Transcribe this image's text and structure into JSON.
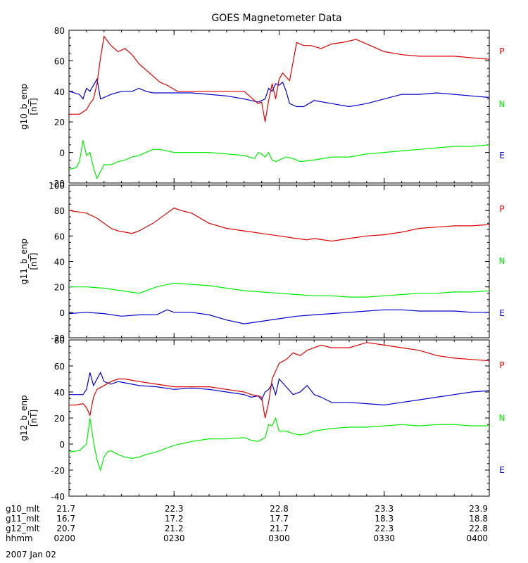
{
  "title": "GOES Magnetometer Data",
  "colors": {
    "P": "#dd0000",
    "N": "#00ee00",
    "E": "#0000cc",
    "axis": "#000000"
  },
  "chart_data": [
    {
      "type": "line",
      "ylabel": "g10_b_enp",
      "yunits": "[nT]",
      "ylim": [
        -20,
        80
      ],
      "yticks": [
        -20,
        0,
        20,
        40,
        60,
        80
      ],
      "legend": [
        "P",
        "N",
        "E"
      ],
      "legend_order_top_to_bottom": [
        "P",
        "N",
        "E"
      ],
      "series": [
        {
          "name": "P",
          "x": [
            0,
            3,
            5,
            6,
            7,
            8,
            9,
            10,
            12,
            14,
            16,
            18,
            20,
            22,
            24,
            26,
            28,
            31,
            35,
            40,
            45,
            50,
            53,
            54,
            55,
            56,
            57,
            58,
            59,
            60,
            61,
            63,
            65,
            67,
            69,
            72,
            75,
            78,
            82,
            86,
            90,
            95,
            100,
            105,
            110,
            115,
            120
          ],
          "y": [
            25,
            25,
            28,
            32,
            35,
            45,
            62,
            76,
            70,
            66,
            68,
            64,
            58,
            54,
            50,
            46,
            44,
            40,
            40,
            40,
            40,
            40,
            34,
            32,
            33,
            20,
            34,
            45,
            35,
            48,
            52,
            47,
            72,
            70,
            70,
            68,
            71,
            72,
            74,
            70,
            66,
            64,
            63,
            63,
            63,
            62,
            61
          ]
        },
        {
          "name": "N",
          "x": [
            0,
            2,
            3,
            4,
            5,
            6,
            7,
            8,
            10,
            12,
            14,
            16,
            18,
            20,
            22,
            24,
            26,
            28,
            30,
            35,
            40,
            45,
            50,
            53,
            54,
            55,
            56,
            57,
            58,
            59,
            60,
            62,
            64,
            66,
            70,
            75,
            80,
            85,
            90,
            95,
            100,
            105,
            110,
            115,
            120
          ],
          "y": [
            -11,
            -10,
            -6,
            8,
            -2,
            0,
            -10,
            -17,
            -8,
            -8,
            -6,
            -5,
            -3,
            -2,
            0,
            2,
            2,
            1,
            0,
            0,
            0,
            -1,
            -2,
            -4,
            0,
            -1,
            -3,
            0,
            -5,
            -6,
            -5,
            -3,
            -4,
            -6,
            -5,
            -3,
            -3,
            -1,
            0,
            1,
            2,
            3,
            4,
            4,
            5
          ]
        },
        {
          "name": "E",
          "x": [
            0,
            3,
            4,
            5,
            6,
            7,
            8,
            9,
            10,
            12,
            15,
            18,
            20,
            22,
            24,
            26,
            28,
            30,
            35,
            40,
            45,
            50,
            52,
            54,
            55,
            56,
            57,
            58,
            59,
            60,
            61,
            62,
            63,
            65,
            67,
            70,
            75,
            80,
            85,
            90,
            95,
            100,
            105,
            110,
            115,
            120
          ],
          "y": [
            40,
            38,
            35,
            42,
            40,
            44,
            48,
            35,
            36,
            38,
            40,
            40,
            42,
            40,
            39,
            39,
            39,
            39,
            39,
            38,
            37,
            35,
            34,
            33,
            34,
            35,
            42,
            40,
            45,
            44,
            46,
            40,
            32,
            30,
            30,
            34,
            32,
            30,
            32,
            35,
            38,
            38,
            39,
            38,
            37,
            36
          ]
        }
      ]
    },
    {
      "type": "line",
      "ylabel": "g11_b_enp",
      "yunits": "[nT]",
      "ylim": [
        -20,
        100
      ],
      "yticks": [
        -20,
        0,
        20,
        40,
        60,
        80,
        100
      ],
      "legend": [
        "P",
        "N",
        "E"
      ],
      "legend_order_top_to_bottom": [
        "P",
        "N",
        "E"
      ],
      "series": [
        {
          "name": "P",
          "x": [
            0,
            5,
            8,
            10,
            12,
            14,
            16,
            18,
            20,
            24,
            28,
            30,
            32,
            35,
            40,
            45,
            50,
            55,
            60,
            65,
            68,
            70,
            75,
            80,
            85,
            90,
            95,
            100,
            105,
            110,
            115,
            120
          ],
          "y": [
            80,
            78,
            74,
            70,
            66,
            64,
            63,
            62,
            64,
            70,
            78,
            82,
            80,
            78,
            70,
            66,
            64,
            62,
            60,
            58,
            57,
            58,
            56,
            58,
            60,
            61,
            63,
            66,
            67,
            68,
            68,
            69
          ]
        },
        {
          "name": "N",
          "x": [
            0,
            5,
            10,
            15,
            20,
            25,
            30,
            35,
            40,
            45,
            50,
            55,
            60,
            65,
            70,
            75,
            80,
            85,
            90,
            95,
            100,
            105,
            110,
            115,
            120
          ],
          "y": [
            20,
            20,
            19,
            17,
            15,
            20,
            23,
            22,
            21,
            19,
            17,
            16,
            15,
            14,
            13,
            13,
            12,
            12,
            13,
            14,
            15,
            15,
            16,
            16,
            17
          ]
        },
        {
          "name": "E",
          "x": [
            0,
            5,
            10,
            15,
            20,
            25,
            28,
            30,
            35,
            40,
            45,
            50,
            55,
            60,
            65,
            70,
            75,
            80,
            85,
            90,
            95,
            100,
            105,
            110,
            115,
            120
          ],
          "y": [
            -1,
            0,
            -1,
            -3,
            -2,
            -2,
            2,
            0,
            0,
            -2,
            -6,
            -9,
            -7,
            -5,
            -3,
            -2,
            -1,
            0,
            1,
            2,
            2,
            1,
            1,
            1,
            0,
            0
          ]
        }
      ]
    },
    {
      "type": "line",
      "ylabel": "g12_b_enp",
      "yunits": "[nT]",
      "ylim": [
        -40,
        80
      ],
      "yticks": [
        -40,
        -20,
        0,
        20,
        40,
        60,
        80
      ],
      "legend": [
        "P",
        "N",
        "E"
      ],
      "legend_order_top_to_bottom": [
        "P",
        "N",
        "E"
      ],
      "series": [
        {
          "name": "P",
          "x": [
            0,
            2,
            4,
            5,
            6,
            7,
            8,
            10,
            12,
            14,
            16,
            18,
            20,
            25,
            30,
            35,
            40,
            45,
            50,
            52,
            54,
            55,
            56,
            57,
            58,
            60,
            62,
            64,
            66,
            68,
            70,
            72,
            75,
            80,
            85,
            90,
            95,
            100,
            105,
            110,
            115,
            120
          ],
          "y": [
            30,
            30,
            31,
            28,
            22,
            36,
            42,
            45,
            48,
            50,
            50,
            49,
            48,
            46,
            44,
            44,
            44,
            42,
            40,
            38,
            37,
            36,
            20,
            32,
            50,
            62,
            65,
            70,
            68,
            72,
            74,
            76,
            74,
            74,
            78,
            76,
            74,
            72,
            68,
            66,
            65,
            64
          ]
        },
        {
          "name": "N",
          "x": [
            0,
            3,
            5,
            6,
            7,
            8,
            9,
            10,
            11,
            12,
            14,
            16,
            18,
            20,
            22,
            25,
            28,
            30,
            35,
            40,
            45,
            50,
            52,
            54,
            56,
            57,
            58,
            59,
            60,
            62,
            64,
            66,
            68,
            70,
            75,
            80,
            85,
            90,
            95,
            100,
            105,
            110,
            115,
            120
          ],
          "y": [
            -6,
            -5,
            0,
            20,
            2,
            -12,
            -20,
            -10,
            -6,
            -5,
            -8,
            -10,
            -11,
            -10,
            -8,
            -6,
            -3,
            -1,
            2,
            4,
            4,
            5,
            3,
            2,
            5,
            15,
            14,
            20,
            10,
            10,
            8,
            7,
            8,
            10,
            12,
            13,
            13,
            14,
            15,
            14,
            15,
            15,
            14,
            14
          ]
        },
        {
          "name": "E",
          "x": [
            0,
            4,
            5,
            6,
            7,
            8,
            9,
            10,
            12,
            14,
            16,
            18,
            20,
            25,
            30,
            35,
            40,
            45,
            50,
            52,
            54,
            55,
            56,
            57,
            58,
            59,
            60,
            62,
            64,
            66,
            68,
            70,
            72,
            75,
            80,
            85,
            90,
            95,
            100,
            105,
            110,
            115,
            120
          ],
          "y": [
            38,
            38,
            42,
            55,
            45,
            50,
            55,
            48,
            46,
            48,
            47,
            46,
            45,
            44,
            42,
            43,
            42,
            40,
            38,
            36,
            37,
            34,
            40,
            42,
            46,
            38,
            50,
            44,
            38,
            40,
            45,
            38,
            36,
            32,
            32,
            31,
            30,
            32,
            34,
            36,
            38,
            40,
            41
          ]
        }
      ]
    }
  ],
  "x_axis": {
    "xlim": [
      0,
      120
    ],
    "tick_positions": [
      0,
      30,
      60,
      90,
      120
    ],
    "minor_step": 5,
    "rows": [
      {
        "label": "g10_mlt",
        "values": [
          "21.7",
          "22.3",
          "22.8",
          "23.3",
          "23.9"
        ]
      },
      {
        "label": "g11_mlt",
        "values": [
          "16.7",
          "17.2",
          "17.7",
          "18.3",
          "18.8"
        ]
      },
      {
        "label": "g12_mlt",
        "values": [
          "20.7",
          "21.2",
          "21.7",
          "22.3",
          "22.8"
        ]
      },
      {
        "label": "hhmm",
        "values": [
          "0200",
          "0230",
          "0300",
          "0330",
          "0400"
        ]
      }
    ],
    "date": "2007 Jan 02"
  }
}
